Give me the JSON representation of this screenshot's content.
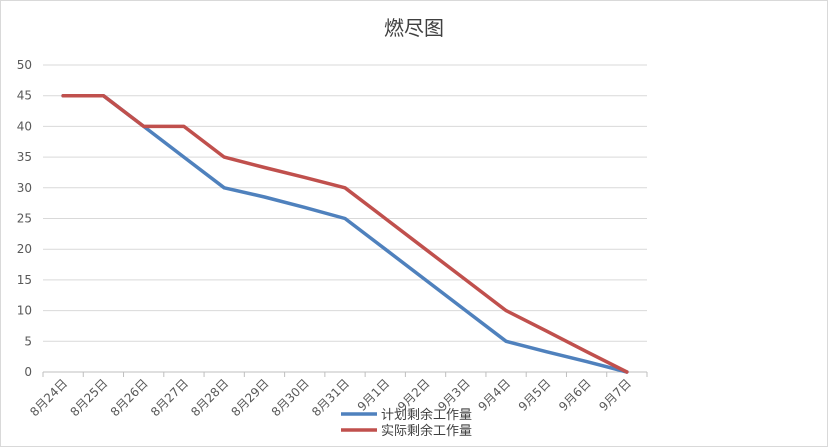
{
  "chart_data": {
    "type": "line",
    "title": "燃尽图",
    "categories": [
      "8月24日",
      "8月25日",
      "8月26日",
      "8月27日",
      "8月28日",
      "8月29日",
      "8月30日",
      "8月31日",
      "9月1日",
      "9月2日",
      "9月3日",
      "9月4日",
      "9月5日",
      "9月6日",
      "9月7日"
    ],
    "ylim": [
      0,
      50
    ],
    "yticks": [
      0,
      5,
      10,
      15,
      20,
      25,
      30,
      35,
      40,
      45,
      50
    ],
    "grid": true,
    "legend_position": "bottom",
    "series": [
      {
        "name": "计划剩余工作量",
        "color": "#4f81bd",
        "values": [
          45,
          45,
          40,
          35,
          30,
          28.5,
          26.8,
          25,
          20,
          15,
          10,
          5,
          3.3,
          1.7,
          0
        ]
      },
      {
        "name": "实际剩余工作量",
        "color": "#c0504d",
        "values": [
          45,
          45,
          40,
          40,
          35,
          33.3,
          31.7,
          30,
          25,
          20,
          15,
          10,
          6.7,
          3.3,
          0
        ]
      }
    ]
  }
}
